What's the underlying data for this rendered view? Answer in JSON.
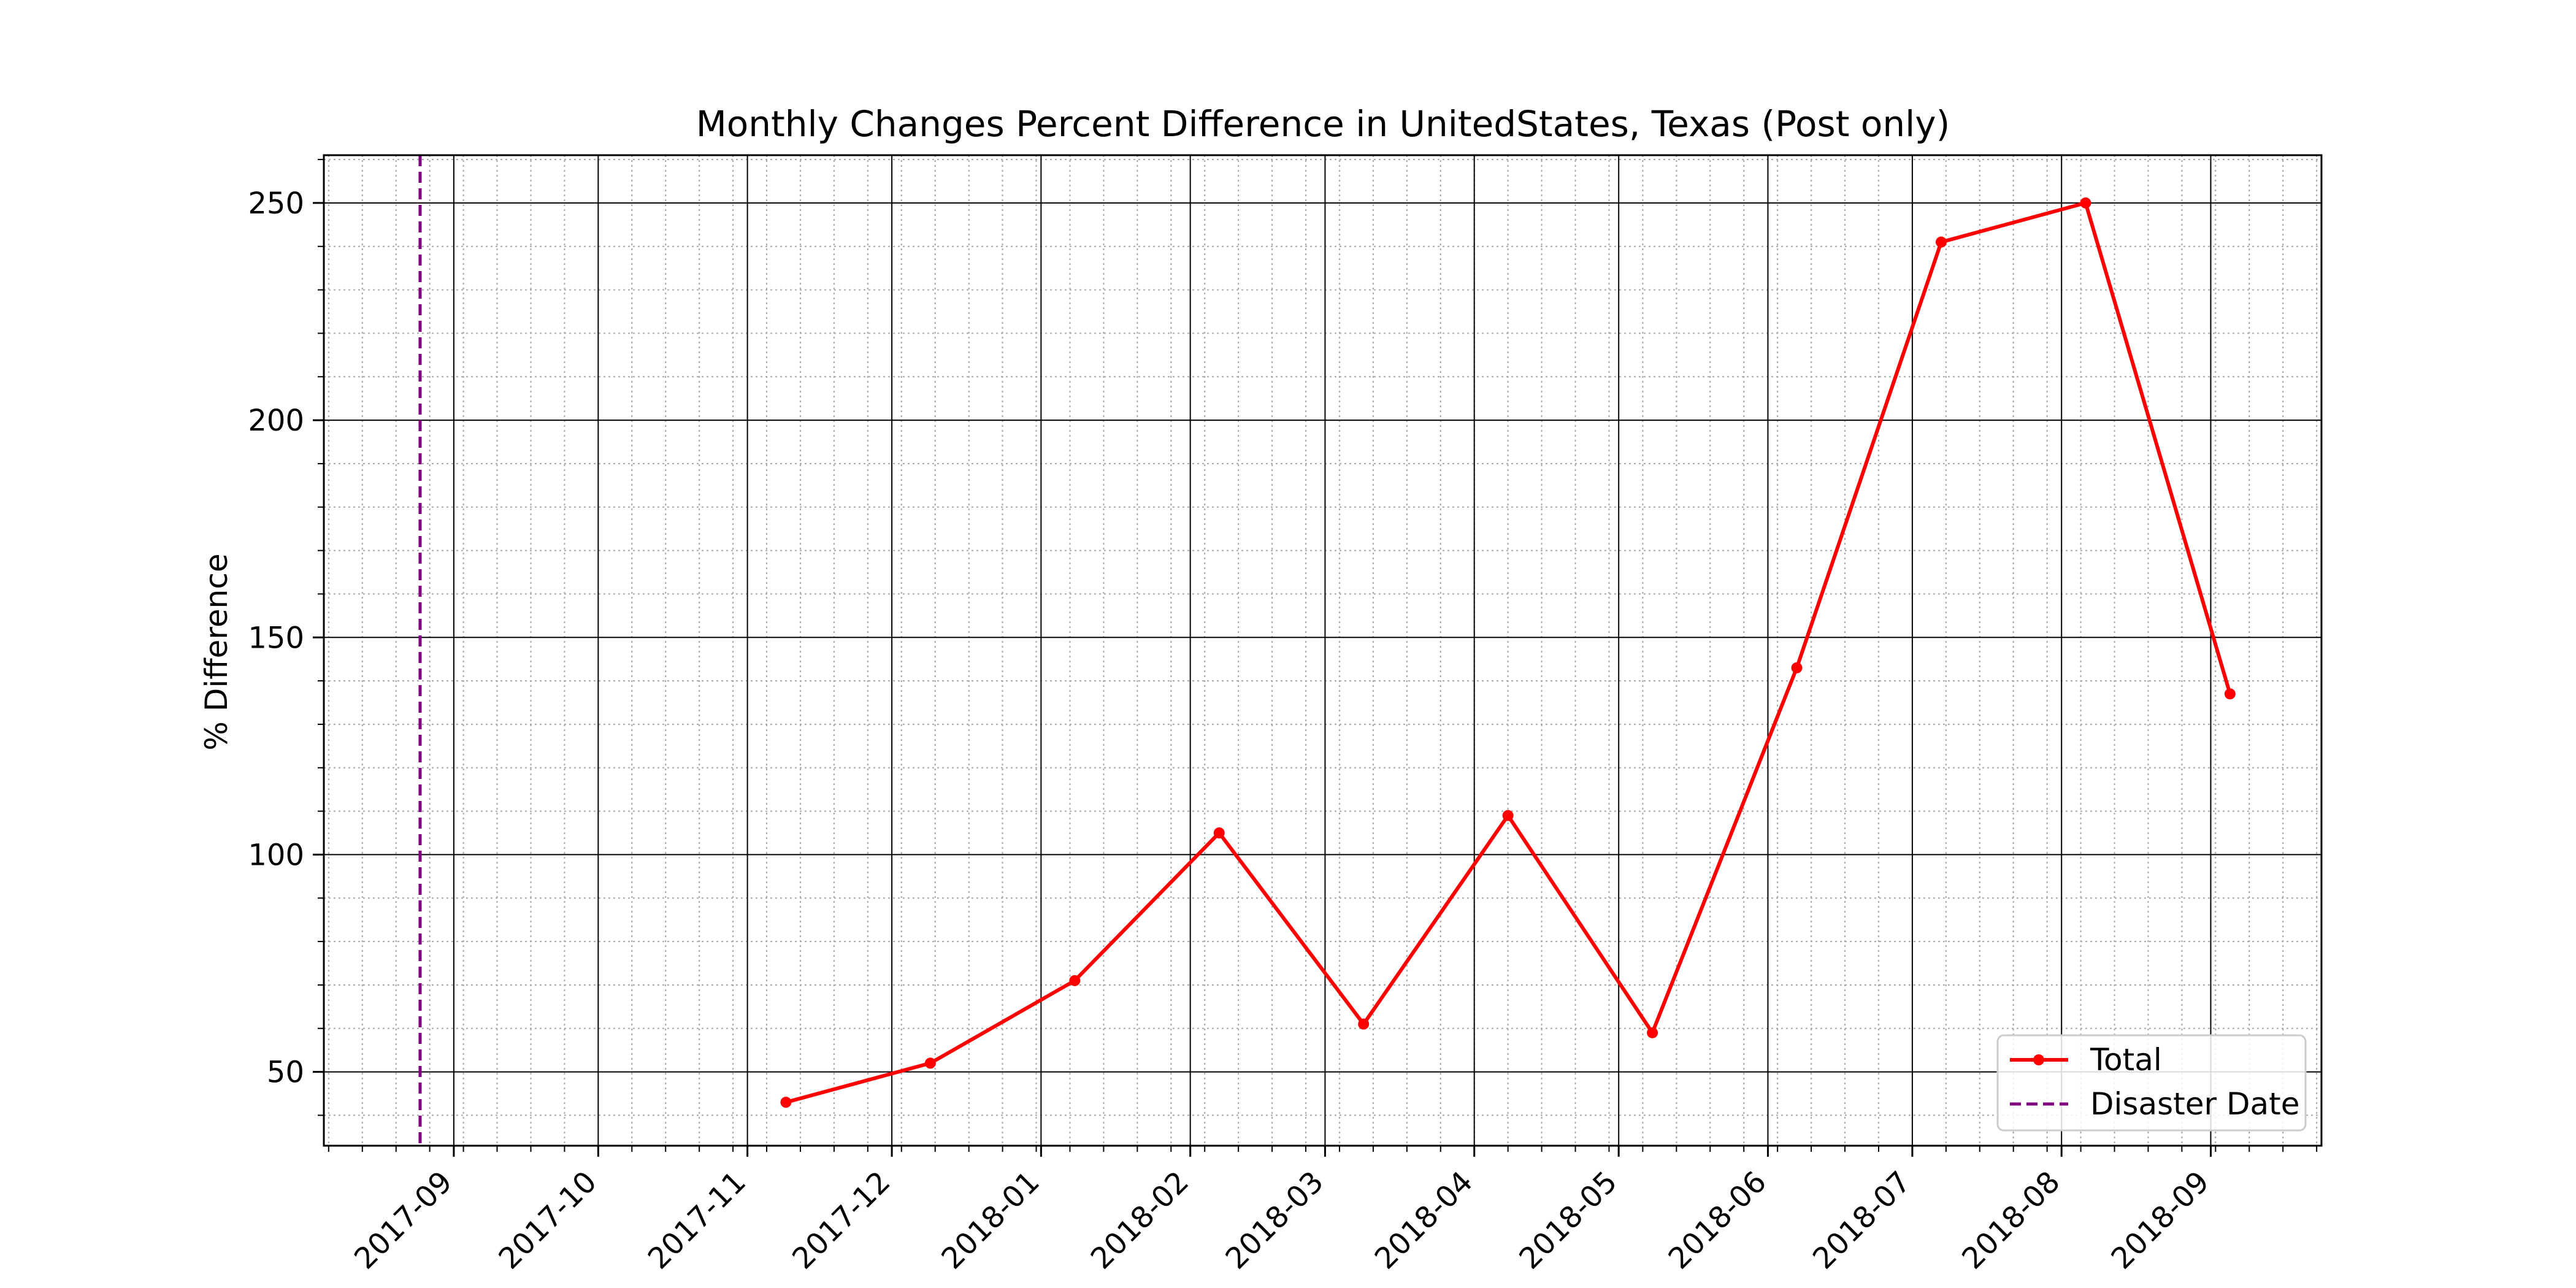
{
  "chart_data": {
    "type": "line",
    "title": "Monthly Changes Percent Difference in UnitedStates, Texas (Post only)",
    "xlabel": "",
    "ylabel": "% Difference",
    "x_type": "date",
    "xlim": [
      "2017-08-05",
      "2018-09-24"
    ],
    "ylim": [
      33,
      261
    ],
    "x_ticks": [
      "2017-09-01",
      "2017-10-01",
      "2017-11-01",
      "2017-12-01",
      "2018-01-01",
      "2018-02-01",
      "2018-03-01",
      "2018-04-01",
      "2018-05-01",
      "2018-06-01",
      "2018-07-01",
      "2018-08-01",
      "2018-09-01"
    ],
    "x_tick_labels": [
      "2017-09",
      "2017-10",
      "2017-11",
      "2017-12",
      "2018-01",
      "2018-02",
      "2018-03",
      "2018-04",
      "2018-05",
      "2018-06",
      "2018-07",
      "2018-08",
      "2018-09"
    ],
    "y_ticks": [
      50,
      100,
      150,
      200,
      250
    ],
    "y_tick_labels": [
      "50",
      "100",
      "150",
      "200",
      "250"
    ],
    "grid": "major and minor",
    "legend_position": "lower-right",
    "series": [
      {
        "name": "Total",
        "color": "#ff0000",
        "marker": "circle",
        "x": [
          "2017-11-09",
          "2017-12-09",
          "2018-01-08",
          "2018-02-07",
          "2018-03-09",
          "2018-04-08",
          "2018-05-08",
          "2018-06-07",
          "2018-07-07",
          "2018-08-06",
          "2018-09-05"
        ],
        "values": [
          43,
          52,
          71,
          105,
          61,
          109,
          59,
          143,
          241,
          250,
          137
        ]
      }
    ],
    "reference_lines": [
      {
        "name": "Disaster Date",
        "orientation": "vertical",
        "x": "2017-08-25",
        "color": "#800080",
        "style": "dashed"
      }
    ]
  }
}
